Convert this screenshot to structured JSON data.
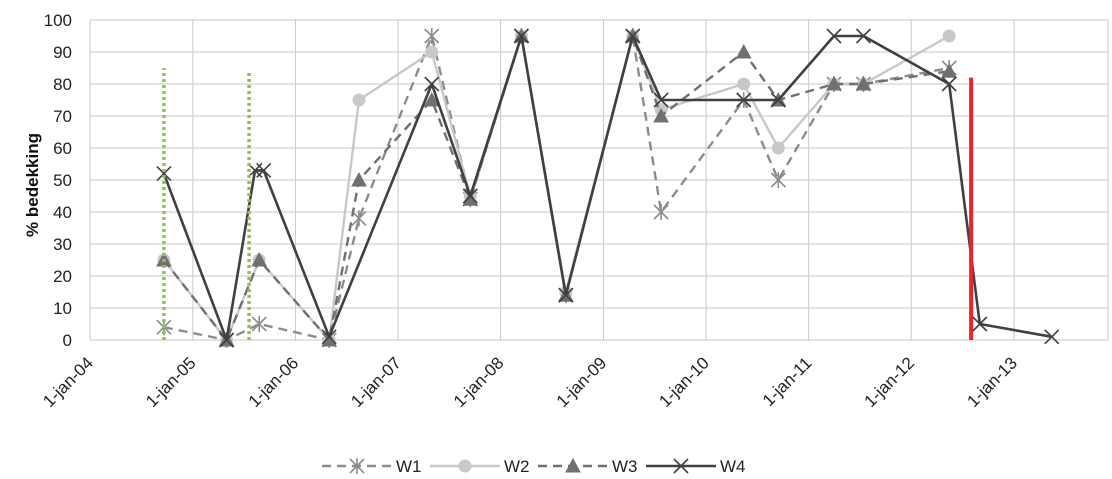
{
  "chart_data": {
    "type": "line",
    "title": "",
    "xlabel": "",
    "ylabel": "% bedekking",
    "ylim": [
      0,
      100
    ],
    "yticks": [
      0,
      10,
      20,
      30,
      40,
      50,
      60,
      70,
      80,
      90,
      100
    ],
    "xlim": [
      "2004-01-01",
      "2013-12-01"
    ],
    "xticks": [
      {
        "date": "2004-01-01",
        "label": "1-jan-04"
      },
      {
        "date": "2005-01-01",
        "label": "1-jan-05"
      },
      {
        "date": "2006-01-01",
        "label": "1-jan-06"
      },
      {
        "date": "2007-01-01",
        "label": "1-jan-07"
      },
      {
        "date": "2008-01-01",
        "label": "1-jan-08"
      },
      {
        "date": "2009-01-01",
        "label": "1-jan-09"
      },
      {
        "date": "2010-01-01",
        "label": "1-jan-10"
      },
      {
        "date": "2011-01-01",
        "label": "1-jan-11"
      },
      {
        "date": "2012-01-01",
        "label": "1-jan-12"
      },
      {
        "date": "2013-01-01",
        "label": "1-jan-13"
      }
    ],
    "grid": true,
    "legend_position": "bottom",
    "series": [
      {
        "name": "W1",
        "color": "#8c8c8c",
        "dash": "dashed",
        "marker": "asterisk",
        "points": [
          [
            "2004-09-20",
            4
          ],
          [
            "2005-05-01",
            0
          ],
          [
            "2005-08-25",
            5
          ],
          [
            "2006-05-01",
            0
          ],
          [
            "2006-08-15",
            38
          ],
          [
            "2007-05-01",
            95
          ],
          [
            "2007-09-15",
            44
          ],
          [
            "2008-03-15",
            95
          ],
          [
            "2008-08-20",
            14
          ],
          [
            "2009-04-15",
            95
          ],
          [
            "2009-07-25",
            40
          ],
          [
            "2010-05-15",
            75
          ],
          [
            "2010-09-15",
            50
          ],
          [
            "2011-04-01",
            80
          ],
          [
            "2011-07-15",
            80
          ],
          [
            "2012-05-15",
            85
          ]
        ]
      },
      {
        "name": "W2",
        "color": "#c8c8c8",
        "dash": "solid",
        "marker": "circle",
        "points": [
          [
            "2004-09-20",
            25
          ],
          [
            "2005-05-01",
            0
          ],
          [
            "2005-08-25",
            25
          ],
          [
            "2006-05-01",
            0
          ],
          [
            "2006-08-15",
            75
          ],
          [
            "2007-05-01",
            90
          ],
          [
            "2007-09-15",
            45
          ],
          [
            "2008-03-15",
            95
          ],
          [
            "2008-08-20",
            15
          ],
          [
            "2009-04-15",
            95
          ],
          [
            "2009-07-25",
            72
          ],
          [
            "2010-05-15",
            80
          ],
          [
            "2010-09-15",
            60
          ],
          [
            "2011-04-01",
            80
          ],
          [
            "2011-07-15",
            80
          ],
          [
            "2012-05-15",
            95
          ]
        ]
      },
      {
        "name": "W3",
        "color": "#707070",
        "dash": "dashed",
        "marker": "triangle",
        "points": [
          [
            "2004-09-20",
            25
          ],
          [
            "2005-05-01",
            0
          ],
          [
            "2005-08-25",
            25
          ],
          [
            "2006-05-01",
            0
          ],
          [
            "2006-08-15",
            50
          ],
          [
            "2007-05-01",
            75
          ],
          [
            "2007-09-15",
            44
          ],
          [
            "2008-03-15",
            95
          ],
          [
            "2008-08-20",
            14
          ],
          [
            "2009-04-15",
            95
          ],
          [
            "2009-07-25",
            70
          ],
          [
            "2010-05-15",
            90
          ],
          [
            "2010-09-15",
            75
          ],
          [
            "2011-04-01",
            80
          ],
          [
            "2011-07-15",
            80
          ],
          [
            "2012-05-15",
            84
          ]
        ]
      },
      {
        "name": "W4",
        "color": "#404040",
        "dash": "solid",
        "marker": "cross",
        "points": [
          [
            "2004-09-20",
            52
          ],
          [
            "2005-05-01",
            0
          ],
          [
            "2005-08-10",
            53
          ],
          [
            "2005-09-10",
            53
          ],
          [
            "2006-05-01",
            1
          ],
          [
            "2007-05-01",
            80
          ],
          [
            "2007-09-15",
            45
          ],
          [
            "2008-03-15",
            95
          ],
          [
            "2008-08-20",
            14
          ],
          [
            "2009-04-15",
            95
          ],
          [
            "2009-07-25",
            75
          ],
          [
            "2010-05-15",
            75
          ],
          [
            "2010-09-15",
            75
          ],
          [
            "2011-04-01",
            95
          ],
          [
            "2011-07-15",
            95
          ],
          [
            "2012-05-15",
            80
          ],
          [
            "2012-09-01",
            5
          ],
          [
            "2013-05-15",
            1
          ]
        ]
      }
    ],
    "vertical_markers": [
      {
        "date": "2004-09-20",
        "from": 0,
        "to": 85,
        "color": "#8dc63f",
        "style": "dotted"
      },
      {
        "date": "2005-07-20",
        "from": 0,
        "to": 84,
        "color": "#8dc63f",
        "style": "dotted"
      },
      {
        "date": "2012-08-01",
        "from": 0,
        "to": 82,
        "color": "#e8262a",
        "style": "solid"
      }
    ]
  }
}
